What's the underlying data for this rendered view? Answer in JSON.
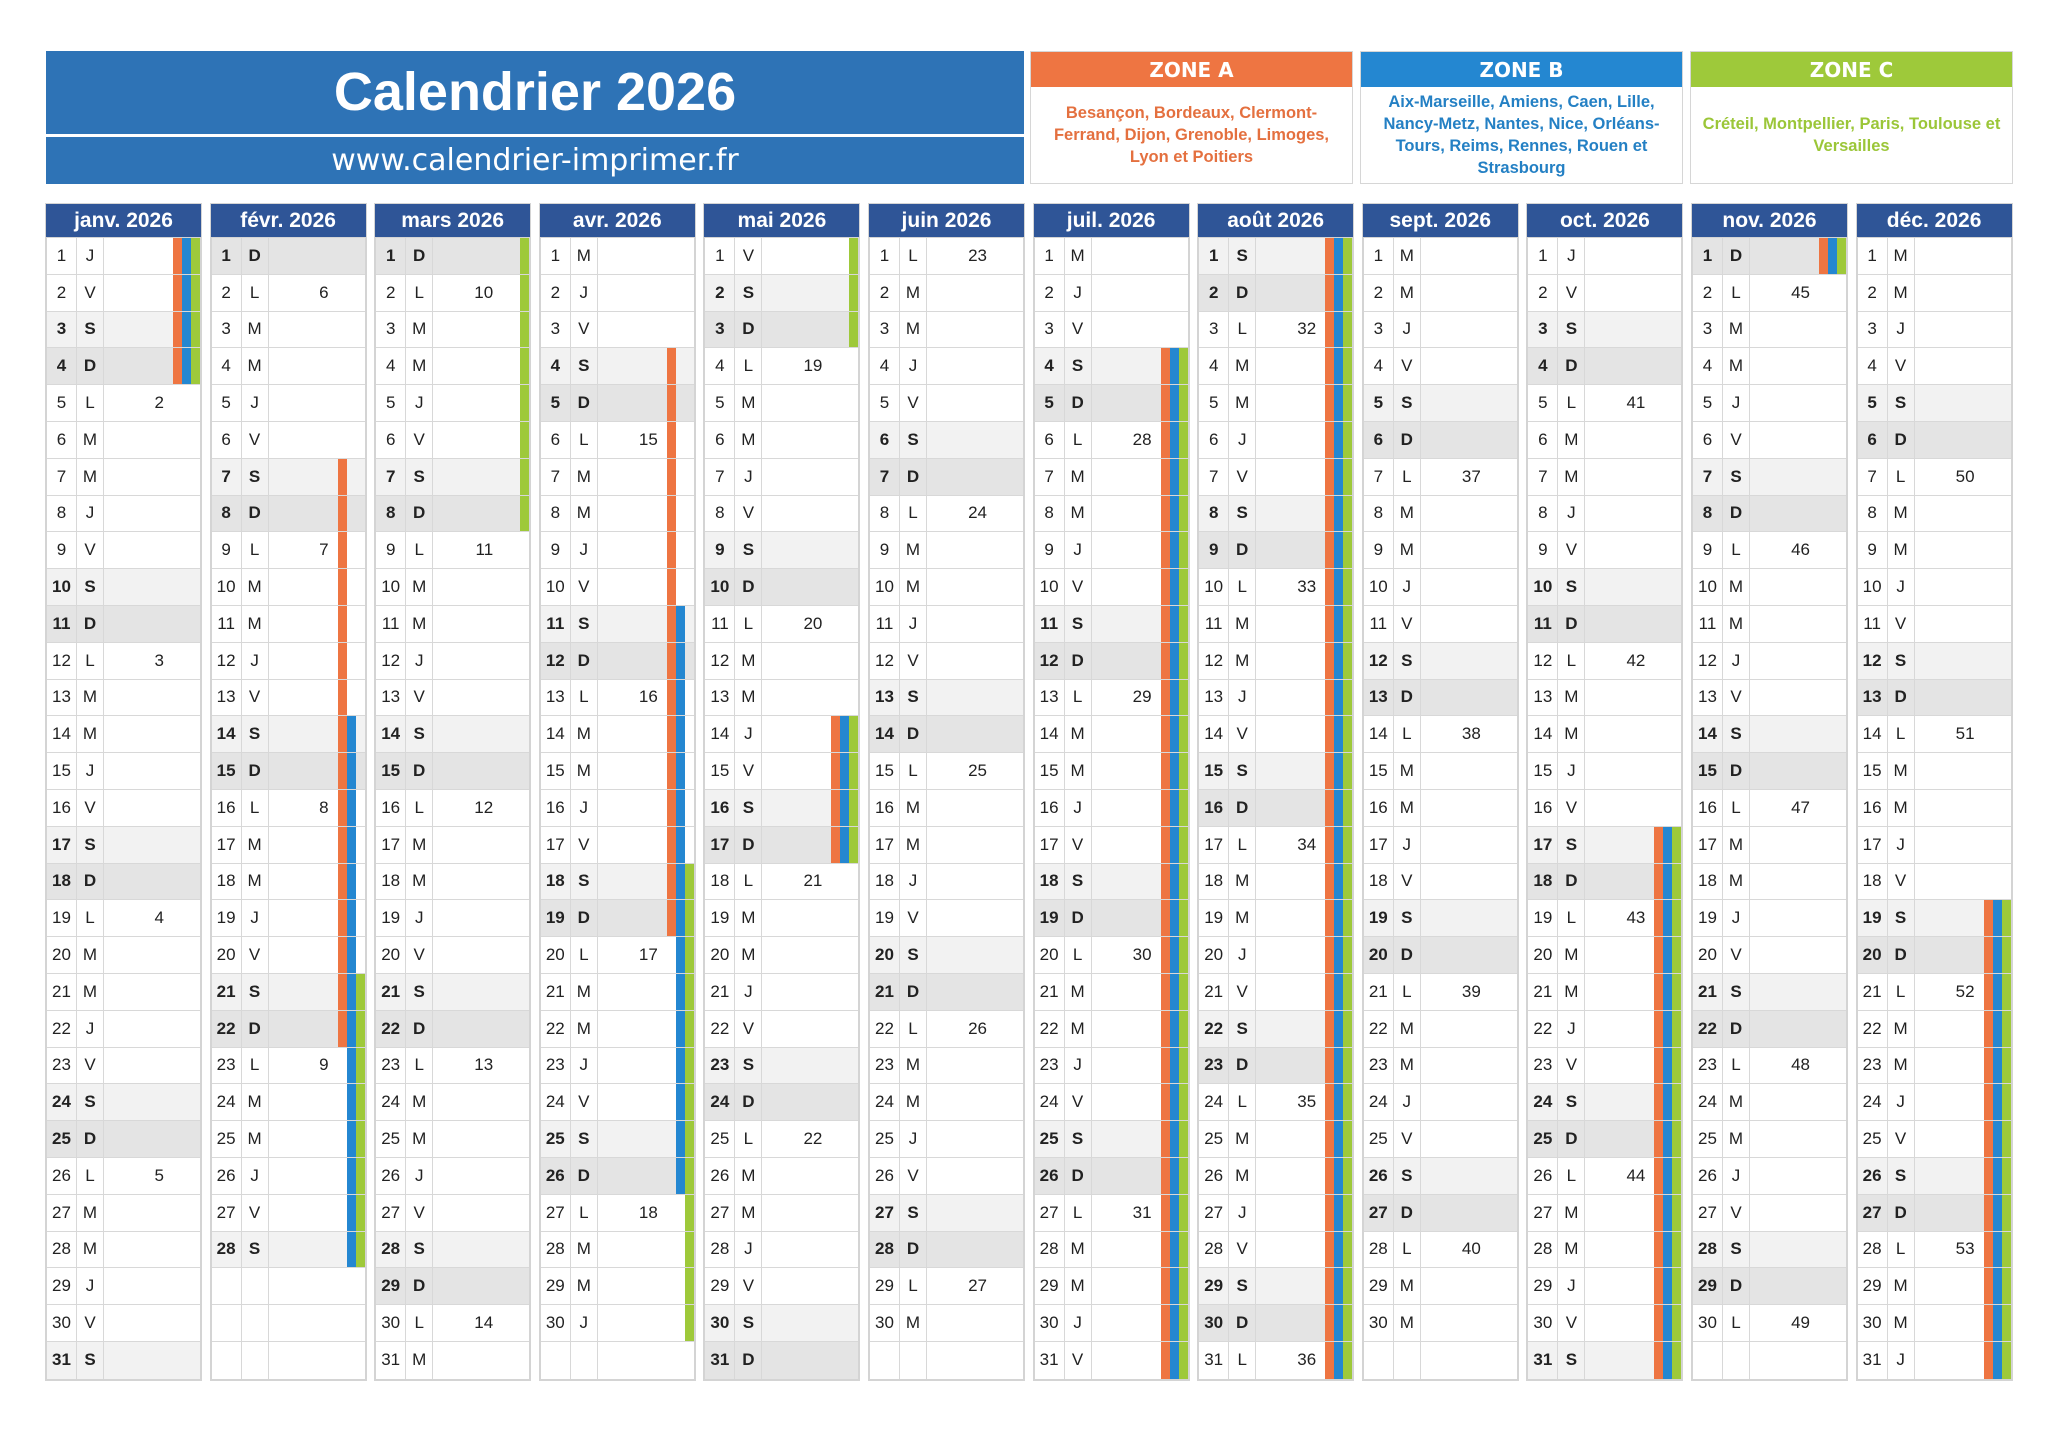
{
  "header": {
    "title": "Calendrier 2026",
    "url": "www.calendrier-imprimer.fr"
  },
  "colors": {
    "title_bg": "#2e73b6",
    "month_header_bg": "#2f5597",
    "saturday_bg": "#f2f2f2",
    "sunday_bg": "#e4e4e4",
    "zone_a": "#ee7542",
    "zone_b": "#2487d1",
    "zone_c": "#9ec93a"
  },
  "zones": [
    {
      "id": "A",
      "label": "ZONE A",
      "color": "#ee7542",
      "cities": "Besançon, Bordeaux, Clermont-Ferrand, Dijon, Grenoble, Limoges, Lyon et Poitiers"
    },
    {
      "id": "B",
      "label": "ZONE B",
      "color": "#2487d1",
      "cities": "Aix-Marseille, Amiens, Caen, Lille, Nancy-Metz, Nantes, Nice, Orléans-Tours, Reims, Rennes, Rouen et Strasbourg"
    },
    {
      "id": "C",
      "label": "ZONE C",
      "color": "#9ec93a",
      "cities": "Créteil, Montpellier, Paris, Toulouse et Versailles"
    }
  ],
  "months": [
    {
      "label": "janv. 2026",
      "days": 31,
      "first_dow": 3,
      "weeks": {
        "5": "2",
        "12": "3",
        "19": "4",
        "26": "5"
      },
      "holidays": {
        "A": [
          [
            1,
            4
          ]
        ],
        "B": [
          [
            1,
            4
          ]
        ],
        "C": [
          [
            1,
            4
          ]
        ]
      }
    },
    {
      "label": "févr. 2026",
      "days": 28,
      "first_dow": 6,
      "weeks": {
        "2": "6",
        "9": "7",
        "16": "8",
        "23": "9"
      },
      "holidays": {
        "A": [
          [
            7,
            22
          ]
        ],
        "B": [
          [
            14,
            28
          ]
        ],
        "C": [
          [
            21,
            28
          ]
        ]
      }
    },
    {
      "label": "mars 2026",
      "days": 31,
      "first_dow": 6,
      "weeks": {
        "2": "10",
        "9": "11",
        "16": "12",
        "23": "13",
        "30": "14"
      },
      "holidays": {
        "A": [],
        "B": [],
        "C": [
          [
            1,
            8
          ]
        ]
      }
    },
    {
      "label": "avr. 2026",
      "days": 30,
      "first_dow": 2,
      "weeks": {
        "6": "15",
        "13": "16",
        "20": "17",
        "27": "18"
      },
      "holidays": {
        "A": [
          [
            4,
            19
          ]
        ],
        "B": [
          [
            11,
            26
          ]
        ],
        "C": [
          [
            18,
            30
          ]
        ]
      }
    },
    {
      "label": "mai 2026",
      "days": 31,
      "first_dow": 4,
      "weeks": {
        "4": "19",
        "11": "20",
        "18": "21",
        "25": "22"
      },
      "holidays": {
        "A": [
          [
            14,
            17
          ]
        ],
        "B": [
          [
            14,
            17
          ]
        ],
        "C": [
          [
            1,
            3
          ],
          [
            14,
            17
          ]
        ]
      }
    },
    {
      "label": "juin 2026",
      "days": 30,
      "first_dow": 0,
      "weeks": {
        "1": "23",
        "8": "24",
        "15": "25",
        "22": "26",
        "29": "27"
      },
      "holidays": {
        "A": [],
        "B": [],
        "C": []
      }
    },
    {
      "label": "juil. 2026",
      "days": 31,
      "first_dow": 2,
      "weeks": {
        "6": "28",
        "13": "29",
        "20": "30",
        "27": "31"
      },
      "holidays": {
        "A": [
          [
            4,
            31
          ]
        ],
        "B": [
          [
            4,
            31
          ]
        ],
        "C": [
          [
            4,
            31
          ]
        ]
      }
    },
    {
      "label": "août 2026",
      "days": 31,
      "first_dow": 5,
      "weeks": {
        "3": "32",
        "10": "33",
        "17": "34",
        "24": "35",
        "31": "36"
      },
      "holidays": {
        "A": [
          [
            1,
            31
          ]
        ],
        "B": [
          [
            1,
            31
          ]
        ],
        "C": [
          [
            1,
            31
          ]
        ]
      }
    },
    {
      "label": "sept. 2026",
      "days": 30,
      "first_dow": 1,
      "weeks": {
        "7": "37",
        "14": "38",
        "21": "39",
        "28": "40"
      },
      "holidays": {
        "A": [],
        "B": [],
        "C": []
      }
    },
    {
      "label": "oct. 2026",
      "days": 31,
      "first_dow": 3,
      "weeks": {
        "5": "41",
        "12": "42",
        "19": "43",
        "26": "44"
      },
      "holidays": {
        "A": [
          [
            17,
            31
          ]
        ],
        "B": [
          [
            17,
            31
          ]
        ],
        "C": [
          [
            17,
            31
          ]
        ]
      }
    },
    {
      "label": "nov. 2026",
      "days": 30,
      "first_dow": 6,
      "weeks": {
        "2": "45",
        "9": "46",
        "16": "47",
        "23": "48",
        "30": "49"
      },
      "holidays": {
        "A": [
          [
            1,
            1
          ]
        ],
        "B": [
          [
            1,
            1
          ]
        ],
        "C": [
          [
            1,
            1
          ]
        ]
      }
    },
    {
      "label": "déc. 2026",
      "days": 31,
      "first_dow": 1,
      "weeks": {
        "7": "50",
        "14": "51",
        "21": "52",
        "28": "53"
      },
      "holidays": {
        "A": [
          [
            19,
            31
          ]
        ],
        "B": [
          [
            19,
            31
          ]
        ],
        "C": [
          [
            19,
            31
          ]
        ]
      }
    }
  ],
  "weekday_letters": [
    "L",
    "M",
    "M",
    "J",
    "V",
    "S",
    "D"
  ]
}
